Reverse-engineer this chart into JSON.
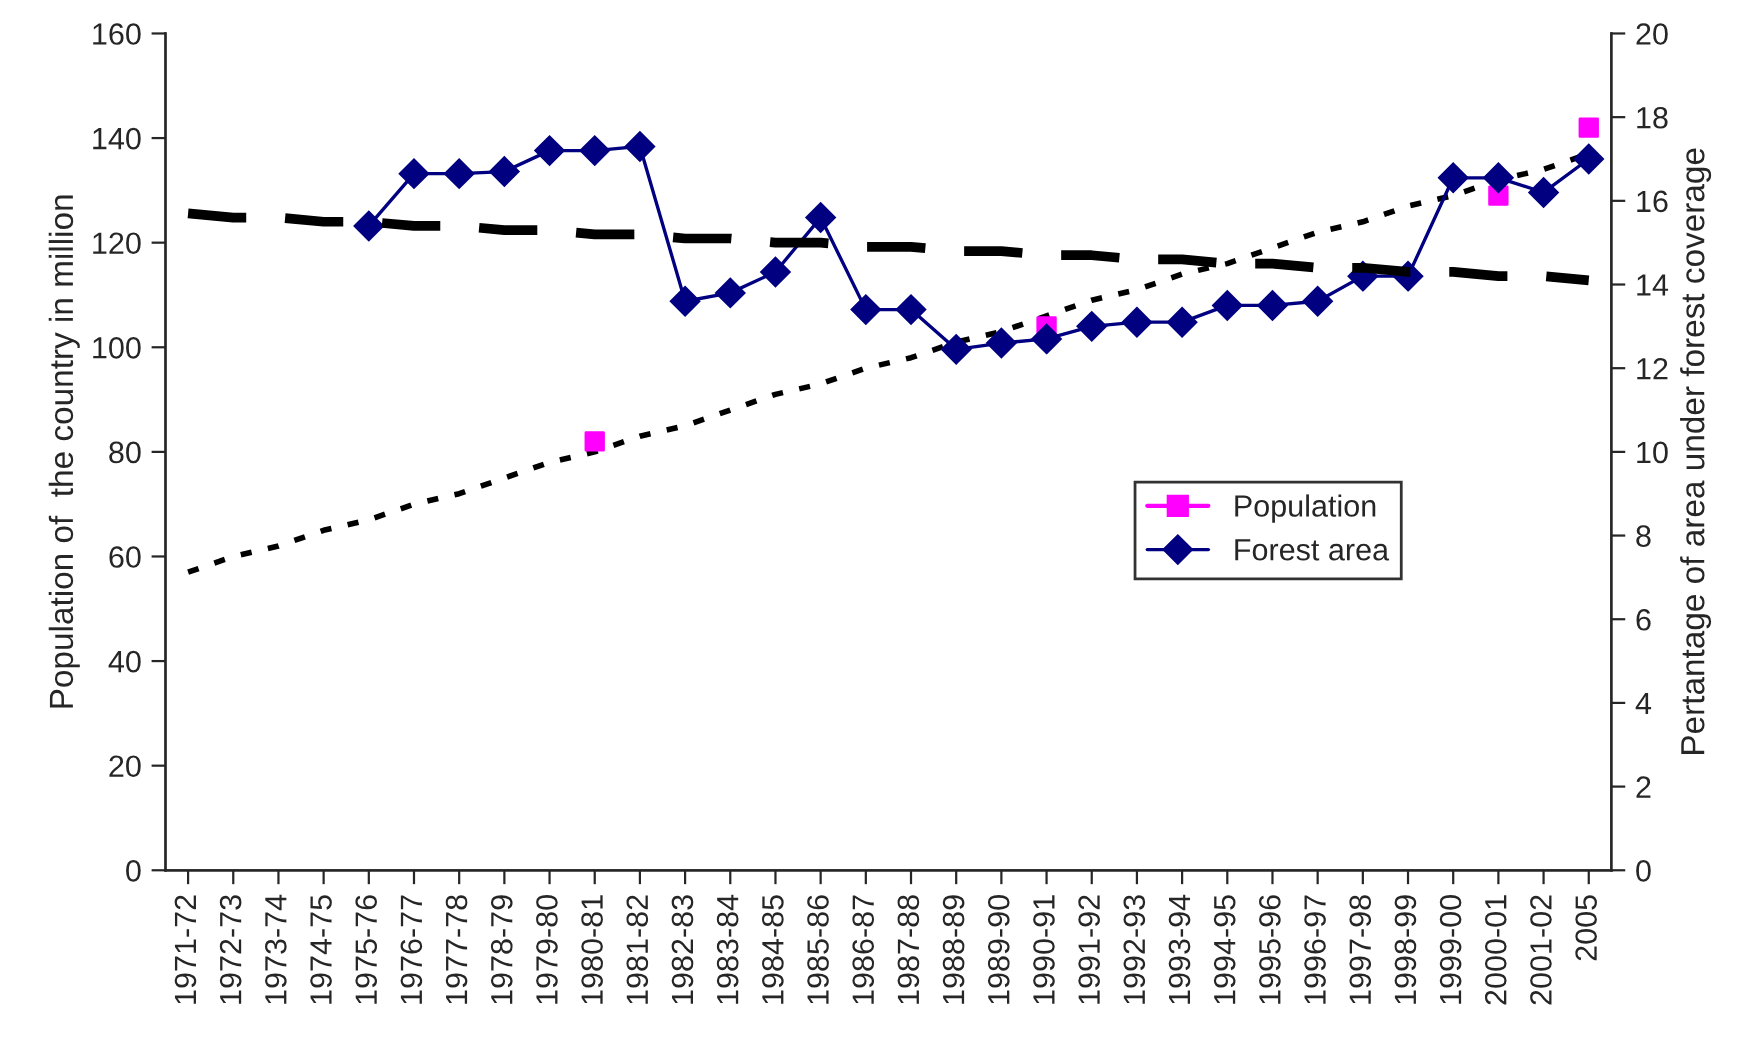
{
  "chart_data": {
    "type": "line",
    "xlabel": null,
    "ylabel": "Population of  the country in million",
    "y2label": "Pertantage of area under forest coverage",
    "categories": [
      "1971-72",
      "1972-73",
      "1973-74",
      "1974-75",
      "1975-76",
      "1976-77",
      "1977-78",
      "1978-79",
      "1979-80",
      "1980-81",
      "1981-82",
      "1982-83",
      "1983-84",
      "1984-85",
      "1985-86",
      "1986-87",
      "1987-88",
      "1988-89",
      "1989-90",
      "1990-91",
      "1991-92",
      "1992-93",
      "1993-94",
      "1994-95",
      "1995-96",
      "1996-97",
      "1997-98",
      "1998-99",
      "1999-00",
      "2000-01",
      "2001-02",
      "2005"
    ],
    "ylim": [
      0,
      160
    ],
    "yticks": [
      0,
      20,
      40,
      60,
      80,
      100,
      120,
      140,
      160
    ],
    "y2lim": [
      0,
      20
    ],
    "y2ticks": [
      0,
      2,
      4,
      6,
      8,
      10,
      12,
      14,
      16,
      18,
      20
    ],
    "grid": false,
    "legend": "right",
    "series": [
      {
        "name": "Population",
        "type": "scatter",
        "color": "#ff00ff",
        "marker": "square",
        "values": [
          null,
          null,
          null,
          null,
          null,
          null,
          null,
          null,
          null,
          82,
          null,
          null,
          null,
          null,
          null,
          null,
          null,
          null,
          null,
          104,
          null,
          null,
          null,
          null,
          null,
          null,
          null,
          null,
          null,
          129,
          null,
          142
        ]
      },
      {
        "name": "Forest area",
        "type": "line",
        "axis": "y2",
        "color": "#000080",
        "marker": "diamond",
        "line_style": "solid",
        "values": [
          null,
          null,
          null,
          null,
          15.4,
          16.65,
          16.65,
          16.7,
          17.2,
          17.2,
          17.3,
          13.6,
          13.8,
          14.3,
          15.6,
          13.4,
          13.4,
          12.45,
          12.6,
          12.7,
          13.0,
          13.1,
          13.1,
          13.5,
          13.5,
          13.6,
          14.2,
          14.2,
          16.55,
          16.55,
          16.2,
          17.0
        ]
      },
      {
        "type": "line",
        "color": "#000000",
        "marker": "none",
        "line_style": "dotted",
        "values": [
          57,
          60,
          62,
          65,
          67,
          70,
          72,
          75,
          78,
          80,
          83,
          85,
          88,
          91,
          93,
          96,
          98,
          101,
          103,
          106,
          109,
          111,
          114,
          116,
          119,
          122,
          124,
          127,
          129,
          132,
          134,
          137
        ]
      },
      {
        "type": "line",
        "axis": "y2",
        "color": "#000000",
        "marker": "none",
        "line_style": "dashed",
        "values": [
          15.7,
          15.6,
          15.6,
          15.5,
          15.5,
          15.4,
          15.4,
          15.3,
          15.3,
          15.2,
          15.2,
          15.1,
          15.1,
          15.0,
          15.0,
          14.9,
          14.9,
          14.8,
          14.8,
          14.7,
          14.7,
          14.6,
          14.6,
          14.5,
          14.5,
          14.4,
          14.4,
          14.3,
          14.3,
          14.2,
          14.2,
          14.1
        ]
      }
    ]
  }
}
